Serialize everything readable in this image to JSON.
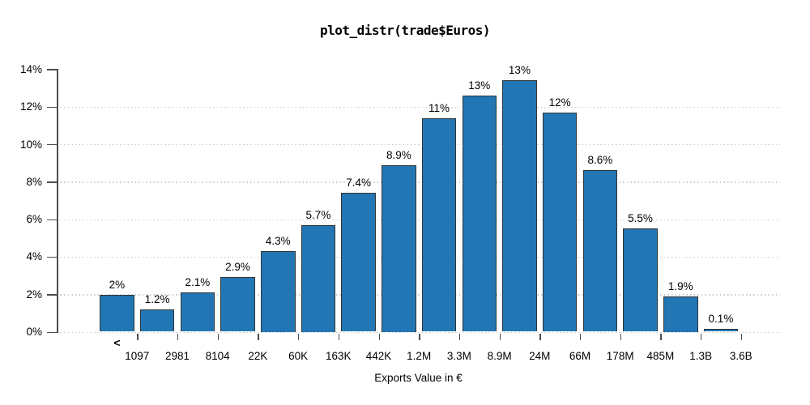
{
  "chart_data": {
    "type": "bar",
    "title": "plot_distr(trade$Euros)",
    "xlabel": "Exports Value in €",
    "ylabel": "",
    "ylim": [
      0,
      14
    ],
    "ytick_step": 2,
    "ytick_labels": [
      "0%",
      "2%",
      "4%",
      "6%",
      "8%",
      "10%",
      "12%",
      "14%"
    ],
    "grid": "horizontal dotted, light gray, at 0-12%",
    "legend": "none",
    "first_bin_marker": "<",
    "x_boundary_labels": [
      "1097",
      "2981",
      "8104",
      "22K",
      "60K",
      "163K",
      "442K",
      "1.2M",
      "3.3M",
      "8.9M",
      "24M",
      "66M",
      "178M",
      "485M",
      "1.3B",
      "3.6B"
    ],
    "bar_labels": [
      "2%",
      "1.2%",
      "2.1%",
      "2.9%",
      "4.3%",
      "5.7%",
      "7.4%",
      "8.9%",
      "11%",
      "13%",
      "13%",
      "12%",
      "8.6%",
      "5.5%",
      "1.9%",
      "0.1%"
    ],
    "values": [
      1.97,
      1.2,
      2.1,
      2.9,
      4.3,
      5.7,
      7.4,
      8.9,
      11.4,
      12.6,
      13.4,
      11.7,
      8.6,
      5.5,
      1.9,
      0.14
    ],
    "colors": {
      "bar_fill": "#2276b4",
      "bar_border": "#333333",
      "gridline": "#c8c8c8",
      "axis": "#4d4d4d",
      "text": "#000000",
      "background": "#ffffff"
    }
  }
}
